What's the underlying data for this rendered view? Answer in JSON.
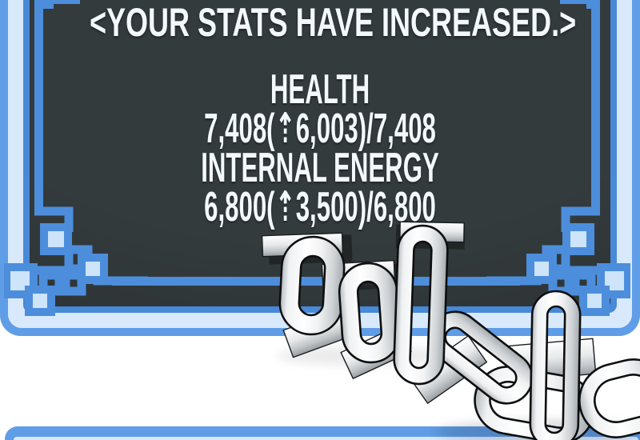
{
  "window": {
    "title": "<YOUR STATS HAVE INCREASED.>",
    "stats": [
      {
        "label": "HEALTH",
        "value": "7,408(⇡6,003)/7,408"
      },
      {
        "label": "INTERNAL ENERGY",
        "value": "6,800(⇡3,500)/6,800"
      }
    ]
  },
  "colors": {
    "frame_blue": "#5f9de6",
    "frame_light_blue": "#d9e9fc",
    "pinstripe_blue": "#4c8edc",
    "panel_dark": "#30373a",
    "text": "#f3f8fd",
    "page_background": "#ffffff"
  },
  "decorations": {
    "corner_ornament": "greek-key-maze-corner",
    "chains": "metal-chain-links"
  }
}
